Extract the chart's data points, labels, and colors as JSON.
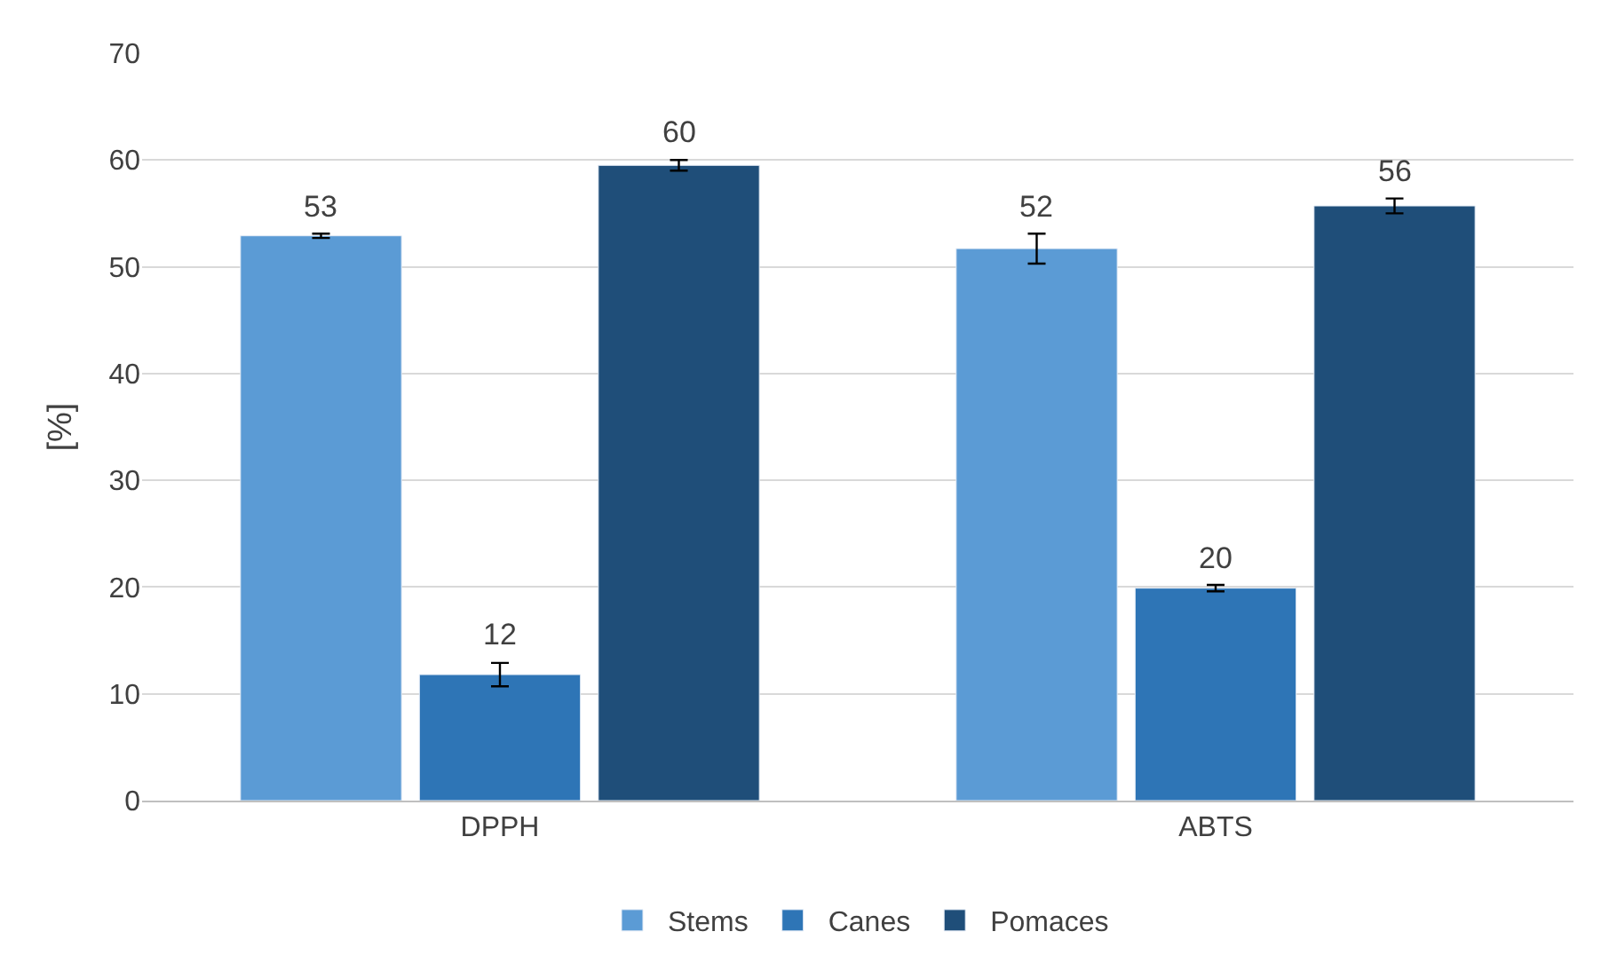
{
  "chart_data": {
    "type": "bar",
    "ylabel": "[%]",
    "categories": [
      "DPPH",
      "ABTS"
    ],
    "series": [
      {
        "name": "Stems",
        "color": "#5b9bd5",
        "values": [
          52.9,
          51.7
        ],
        "errors": [
          0.2,
          1.4
        ],
        "value_labels": [
          "53",
          "52"
        ]
      },
      {
        "name": "Canes",
        "color": "#2e75b6",
        "values": [
          11.8,
          19.9
        ],
        "errors": [
          1.1,
          0.3
        ],
        "value_labels": [
          "12",
          "20"
        ]
      },
      {
        "name": "Pomaces",
        "color": "#1f4e79",
        "values": [
          59.5,
          55.7
        ],
        "errors": [
          0.5,
          0.7
        ],
        "value_labels": [
          "60",
          "56"
        ]
      }
    ],
    "ylim": [
      0,
      70
    ],
    "yticks": [
      0,
      10,
      20,
      30,
      40,
      50,
      60,
      70
    ],
    "grid": "y",
    "legend": "bottom"
  }
}
